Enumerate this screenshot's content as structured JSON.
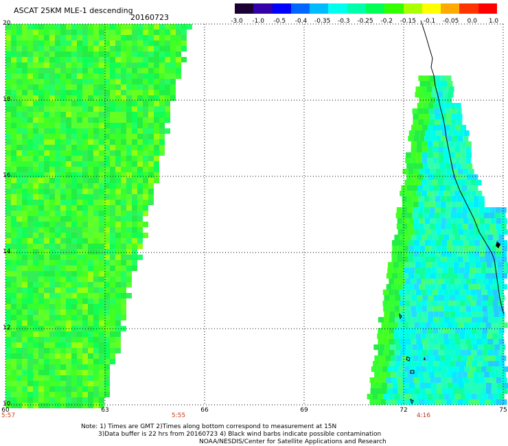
{
  "title": "ASCAT 25KM MLE-1 descending",
  "date": "20160723",
  "colorbar": {
    "ticks": [
      "-3.0",
      "-1.0",
      "-0.5",
      "-0.4",
      "-0.35",
      "-0.3",
      "-0.25",
      "-0.2",
      "-0.15",
      "-0.1",
      "-0.05",
      "0.0",
      "1.0"
    ],
    "colors": [
      "#1a0033",
      "#3300aa",
      "#0000ff",
      "#0066ff",
      "#00bbff",
      "#00ffee",
      "#00ffaa",
      "#00ff55",
      "#33ff00",
      "#aaff00",
      "#ffff00",
      "#ffaa00",
      "#ff3300",
      "#ff0000"
    ]
  },
  "axes": {
    "x_ticks": [
      "60",
      "63",
      "66",
      "69",
      "72",
      "75"
    ],
    "y_ticks": [
      "20",
      "18",
      "16",
      "14",
      "12",
      "10"
    ]
  },
  "pass_times": [
    "5:57",
    "5:55",
    "4:16"
  ],
  "notes": {
    "line1": "Note: 1) Times are GMT 2)Times along bottom correspond to measurement at 15N",
    "line2": "3)Data buffer is 22 hrs from 20160723 4) Black wind barbs indicate possible contamination",
    "line3": "NOAA/NESDIS/Center for Satellite Applications and Research"
  },
  "map_data": {
    "lon_range": [
      60,
      75
    ],
    "lat_range": [
      10,
      20
    ],
    "grid": true
  }
}
